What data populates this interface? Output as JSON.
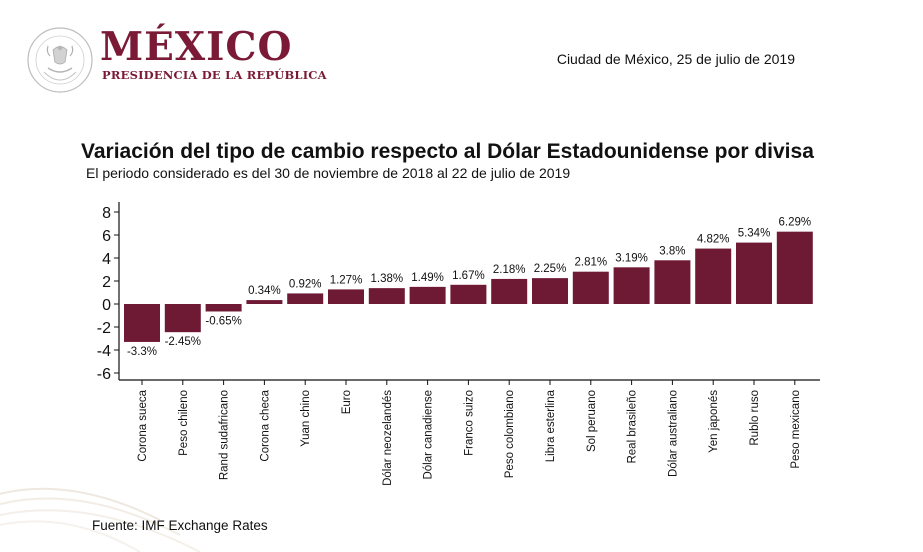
{
  "header": {
    "brand_title": "MÉXICO",
    "brand_subtitle": "PRESIDENCIA DE LA REPÚBLICA",
    "seal_text": "ESTADOS UNIDOS MEXICANOS",
    "date_line": "Ciudad de México, 25 de julio de 2019",
    "brand_color": "#7a1a36"
  },
  "footer": {
    "source": "Fuente: IMF Exchange Rates"
  },
  "chart_data": {
    "type": "bar",
    "title": "Variación del tipo de cambio respecto al Dólar Estadounidense por divisa",
    "subtitle": "El periodo considerado es del 30 de noviembre de 2018 al 22 de julio de 2019",
    "xlabel": "",
    "ylabel": "",
    "ylim": [
      -7,
      9
    ],
    "yticks": [
      8,
      6,
      4,
      2,
      0,
      -2,
      -4,
      -6
    ],
    "grid": false,
    "bar_color": "#6e1a35",
    "categories": [
      "Corona sueca",
      "Peso chileno",
      "Rand sudafricano",
      "Corona checa",
      "Yuan chino",
      "Euro",
      "Dólar neozelandés",
      "Dólar canadiense",
      "Franco suizo",
      "Peso colombiano",
      "Libra esterlina",
      "Sol peruano",
      "Real brasileño",
      "Dólar australiano",
      "Yen japonés",
      "Rublo ruso",
      "Peso mexicano"
    ],
    "values": [
      -3.3,
      -2.45,
      -0.65,
      0.34,
      0.92,
      1.27,
      1.38,
      1.49,
      1.67,
      2.18,
      2.25,
      2.81,
      3.19,
      3.8,
      4.82,
      5.34,
      6.29
    ],
    "data_labels": [
      "-3.3%",
      "-2.45%",
      "-0.65%",
      "0.34%",
      "0.92%",
      "1.27%",
      "1.38%",
      "1.49%",
      "1.67%",
      "2.18%",
      "2.25%",
      "2.81%",
      "3.19%",
      "3.8%",
      "4.82%",
      "5.34%",
      "6.29%"
    ]
  }
}
